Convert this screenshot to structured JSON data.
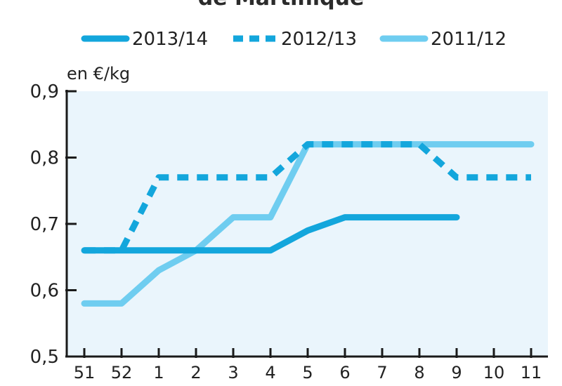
{
  "chart_data": {
    "type": "line",
    "title": "de Martinique",
    "ylabel": "en €/kg",
    "categories": [
      "51",
      "52",
      "1",
      "2",
      "3",
      "4",
      "5",
      "6",
      "7",
      "8",
      "9",
      "10",
      "11"
    ],
    "ylim": [
      0.5,
      0.9
    ],
    "yticks": [
      "0,5",
      "0,6",
      "0,7",
      "0,8",
      "0,9"
    ],
    "legend_position": "top",
    "series": [
      {
        "name": "2013/14",
        "style": "solid",
        "color": "#13a6dc",
        "values": [
          0.66,
          0.66,
          0.66,
          0.66,
          0.66,
          0.66,
          0.69,
          0.71,
          0.71,
          0.71,
          0.71,
          null,
          null
        ]
      },
      {
        "name": "2012/13",
        "style": "dashed",
        "color": "#13a6dc",
        "values": [
          0.66,
          0.66,
          0.77,
          0.77,
          0.77,
          0.77,
          0.82,
          0.82,
          0.82,
          0.82,
          0.77,
          0.77,
          0.77
        ]
      },
      {
        "name": "2011/12",
        "style": "solid",
        "color": "#6fcdf0",
        "values": [
          0.58,
          0.58,
          0.63,
          0.66,
          0.71,
          0.71,
          0.82,
          0.82,
          0.82,
          0.82,
          0.82,
          0.82,
          0.82
        ]
      }
    ]
  }
}
